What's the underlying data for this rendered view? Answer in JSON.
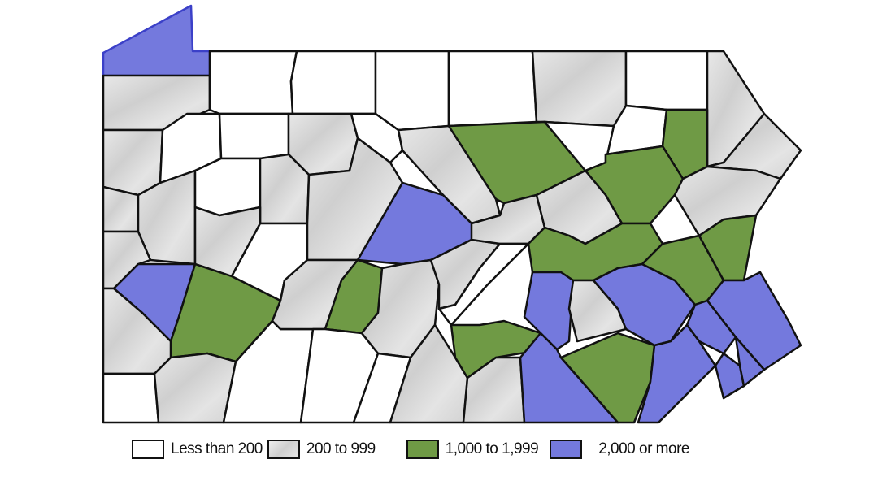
{
  "legend": [
    {
      "label": "Less than 200",
      "category": "lt200",
      "color": "#ffffff"
    },
    {
      "label": "200 to 999",
      "category": "200to999",
      "color": "#dcdcdc"
    },
    {
      "label": "1,000 to 1,999",
      "category": "1000to1999",
      "color": "#6f9a45"
    },
    {
      "label": "2,000 or more",
      "category": "ge2000",
      "color": "#7479dd"
    }
  ],
  "regions": [
    "ge2000",
    "200to999",
    "lt200",
    "lt200",
    "lt200",
    "lt200",
    "200to999",
    "lt200",
    "200to999",
    "200to999",
    "lt200",
    "lt200",
    "200to999",
    "lt200",
    "200to999",
    "1000to1999",
    "lt200",
    "lt200",
    "1000to1999",
    "200to999",
    "1000to1999",
    "200to999",
    "200to999",
    "200to999",
    "lt200",
    "200to999",
    "200to999",
    "lt200",
    "200to999",
    "ge2000",
    "200to999",
    "ge2000",
    "1000to1999",
    "200to999",
    "lt200",
    "200to999",
    "lt200",
    "200to999",
    "1000to1999",
    "lt200",
    "200to999",
    "lt200",
    "200to999",
    "200to999",
    "200to999",
    "200to999",
    "lt200",
    "1000to1999",
    "1000to1999",
    "ge2000",
    "200to999",
    "ge2000",
    "1000to1999",
    "200to999",
    "ge2000",
    "1000to1999",
    "1000to1999",
    "ge2000",
    "ge2000",
    "ge2000",
    "ge2000",
    "ge2000"
  ]
}
